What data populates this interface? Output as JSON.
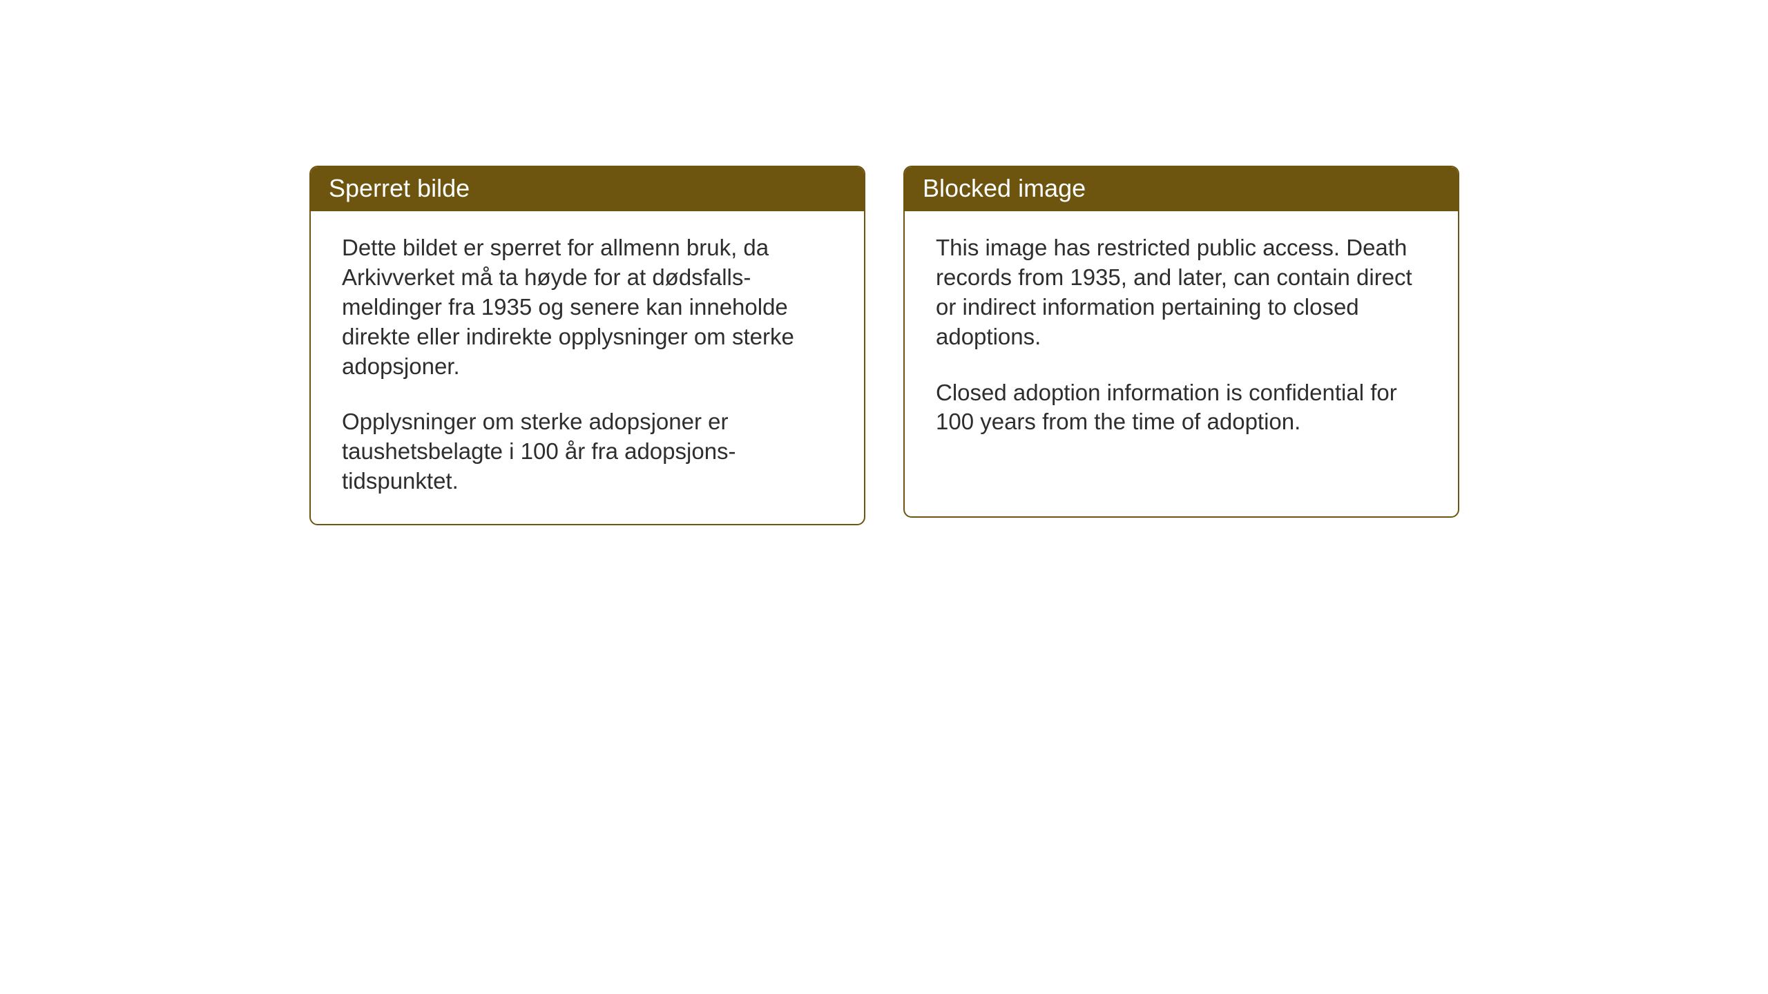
{
  "cards": [
    {
      "title": "Sperret bilde",
      "paragraph1": "Dette bildet er sperret for allmenn bruk, da Arkivverket må ta høyde for at dødsfalls-meldinger fra 1935 og senere kan inneholde direkte eller indirekte opplysninger om sterke adopsjoner.",
      "paragraph2": "Opplysninger om sterke adopsjoner er taushetsbelagte i 100 år fra adopsjons-tidspunktet."
    },
    {
      "title": "Blocked image",
      "paragraph1": "This image has restricted public access. Death records from 1935, and later, can contain direct or indirect information pertaining to closed adoptions.",
      "paragraph2": "Closed adoption information is confidential for 100 years from the time of adoption."
    }
  ],
  "styles": {
    "header_background": "#6e550f",
    "header_text_color": "#ffffff",
    "border_color": "#6e550f",
    "body_text_color": "#2e2e2e",
    "page_background": "#ffffff",
    "header_fontsize": 36,
    "body_fontsize": 33,
    "border_radius": 12,
    "border_width": 2
  }
}
